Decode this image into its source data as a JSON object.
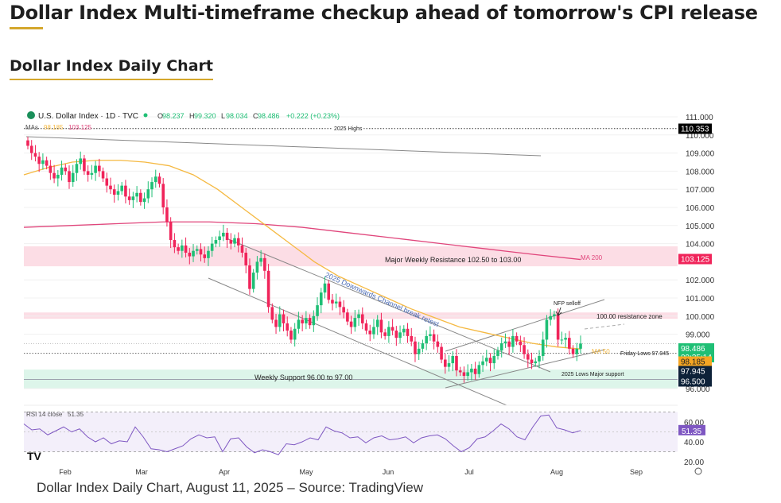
{
  "article": {
    "title": "Dollar Index Multi-timeframe checkup ahead of tomorrow's CPI release",
    "section": "Dollar Index Daily Chart",
    "caption": "Dollar Index Daily Chart, August 11, 2025 – Source: TradingView"
  },
  "chart_data": {
    "type": "candlestick",
    "symbol": "U.S. Dollar Index · 1D · TVC",
    "ohlc_label": {
      "o": "98.237",
      "h": "99.320",
      "l": "98.034",
      "c": "98.486",
      "chg": "+0.222 (+0.23%)"
    },
    "ma_label": {
      "prefix": "MAs",
      "ma50": "98.185",
      "ma200": "103.125"
    },
    "ylim": [
      95.5,
      111.2
    ],
    "yticks": [
      "111.000",
      "110.000",
      "109.000",
      "108.000",
      "107.000",
      "106.000",
      "105.000",
      "104.000",
      "102.000",
      "101.000",
      "100.000",
      "99.000",
      "96.000"
    ],
    "xticks": [
      "Feb",
      "Mar",
      "Apr",
      "May",
      "Jun",
      "Jul",
      "Aug",
      "Sep"
    ],
    "closes": [
      109.4,
      109.0,
      108.8,
      108.4,
      108.6,
      108.3,
      107.9,
      107.6,
      107.8,
      108.2,
      108.0,
      107.4,
      107.9,
      108.4,
      108.7,
      108.0,
      107.8,
      107.9,
      108.3,
      108.0,
      107.6,
      107.2,
      107.0,
      106.7,
      106.9,
      107.2,
      106.6,
      106.4,
      106.6,
      106.8,
      106.3,
      106.5,
      107.0,
      107.4,
      107.7,
      107.3,
      106.0,
      105.2,
      104.2,
      103.8,
      103.6,
      103.9,
      103.5,
      103.3,
      103.6,
      103.7,
      103.4,
      103.2,
      103.6,
      104.0,
      104.2,
      104.4,
      104.6,
      104.2,
      104.0,
      104.3,
      103.9,
      103.5,
      102.8,
      101.5,
      102.4,
      103.0,
      103.2,
      102.5,
      100.5,
      99.8,
      99.4,
      100.1,
      99.6,
      99.2,
      98.7,
      99.3,
      99.8,
      99.6,
      99.9,
      99.5,
      100.0,
      100.6,
      101.3,
      101.8,
      100.9,
      100.7,
      100.8,
      100.5,
      100.2,
      99.7,
      99.4,
      99.9,
      100.1,
      99.6,
      99.2,
      99.0,
      99.4,
      99.8,
      99.1,
      98.9,
      99.4,
      99.2,
      98.8,
      99.1,
      99.3,
      98.9,
      98.6,
      97.9,
      98.2,
      98.5,
      98.9,
      99.0,
      98.6,
      98.3,
      97.6,
      97.2,
      97.4,
      97.8,
      97.0,
      96.9,
      96.7,
      96.9,
      97.1,
      96.8,
      97.3,
      97.5,
      97.7,
      97.4,
      97.8,
      98.1,
      98.5,
      98.6,
      98.3,
      98.9,
      98.6,
      98.4,
      97.9,
      97.6,
      97.4,
      97.5,
      97.8,
      98.7,
      99.8,
      100.0,
      100.1,
      98.7,
      98.7,
      98.8,
      98.2,
      97.9,
      98.2,
      98.486
    ],
    "ma50": [
      107.8,
      108.2,
      108.5,
      108.6,
      108.6,
      108.5,
      108.3,
      107.8,
      107.0,
      106.0,
      105.0,
      104.0,
      103.0,
      102.2,
      101.6,
      101.0,
      100.4,
      99.9,
      99.4,
      99.1,
      98.8,
      98.5,
      98.3,
      98.185
    ],
    "ma200": [
      104.9,
      105.0,
      105.1,
      105.2,
      105.2,
      105.1,
      104.9,
      104.6,
      104.3,
      104.0,
      103.7,
      103.4,
      103.125
    ],
    "price_labels": [
      {
        "text": "110.353",
        "color": "#000000"
      },
      {
        "text": "103.125",
        "color": "#f0245a"
      },
      {
        "text": "98.486",
        "sub": "09:35:14",
        "color": "#1fbf75"
      },
      {
        "text": "98.185",
        "color": "#f5a623"
      },
      {
        "text": "97.945",
        "color": "#0e2239"
      },
      {
        "text": "96.500",
        "color": "#0e2239"
      }
    ],
    "annotations": {
      "highs": "2025 Highs",
      "resistance": "Major Weekly Resistance 102.50 to 103.00",
      "ma200": "MA 200",
      "channel": "2025 Downwards Channel break retest",
      "nfp": "NFP selloff",
      "zone100": "100.00 resistance zone",
      "ma50": "MA 50",
      "friday": "Friday Lows 97.945",
      "lows": "2025 Lows Major support",
      "support": "Weekly Support 96.00 to 97.00"
    },
    "rsi": {
      "label": "RSI 14 close",
      "value": "51.35",
      "yticks": [
        "60.00",
        "40.00",
        "20.00"
      ],
      "values": [
        58,
        52,
        53,
        47,
        51,
        55,
        50,
        53,
        45,
        40,
        44,
        38,
        41,
        40,
        55,
        45,
        33,
        32,
        30,
        33,
        36,
        43,
        47,
        44,
        45,
        30,
        43,
        44,
        35,
        29,
        32,
        30,
        27,
        38,
        37,
        40,
        44,
        42,
        55,
        51,
        49,
        44,
        45,
        39,
        44,
        46,
        42,
        43,
        45,
        39,
        44,
        46,
        47,
        43,
        36,
        30,
        34,
        43,
        45,
        51,
        58,
        53,
        45,
        42,
        55,
        66,
        67,
        54,
        52,
        49,
        51.35
      ]
    },
    "colors": {
      "up": "#1fbf75",
      "down": "#f0245a",
      "ma50": "#f5b942",
      "ma200": "#e0457b",
      "rsi": "#7e57c2"
    }
  }
}
